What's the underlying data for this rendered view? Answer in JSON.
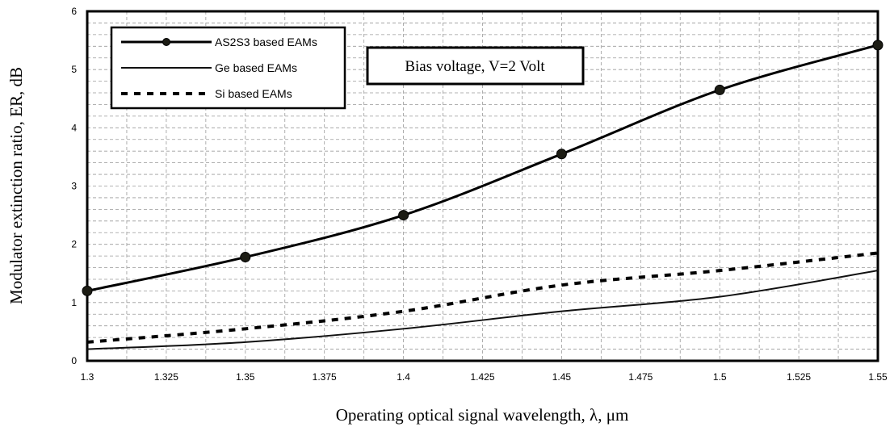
{
  "chart_data": {
    "type": "line",
    "xlabel": "Operating optical signal wavelength, λ, μm",
    "ylabel": "Modulator extinction ratio, ER, dB",
    "xlim": [
      1.3,
      1.55
    ],
    "ylim": [
      0,
      6
    ],
    "x_ticks": [
      "1.3",
      "1.325",
      "1.35",
      "1.375",
      "1.4",
      "1.425",
      "1.45",
      "1.475",
      "1.5",
      "1.525",
      "1.55"
    ],
    "y_ticks": [
      "0",
      "1",
      "2",
      "3",
      "4",
      "5",
      "6"
    ],
    "grid": "dashed major and minor",
    "legend_position": "top-left",
    "annotation": "Bias voltage, V=2 Volt",
    "series": [
      {
        "name": "AS2S3 based EAMs",
        "style": "solid-with-markers",
        "x": [
          1.3,
          1.35,
          1.4,
          1.45,
          1.5,
          1.55
        ],
        "y": [
          1.2,
          1.78,
          2.5,
          3.55,
          4.65,
          5.42
        ]
      },
      {
        "name": "Ge based EAMs",
        "style": "solid-thin",
        "x": [
          1.3,
          1.35,
          1.4,
          1.45,
          1.5,
          1.55
        ],
        "y": [
          0.2,
          0.32,
          0.55,
          0.85,
          1.1,
          1.55
        ]
      },
      {
        "name": "Si based EAMs",
        "style": "dashed",
        "x": [
          1.3,
          1.35,
          1.4,
          1.45,
          1.5,
          1.55
        ],
        "y": [
          0.32,
          0.55,
          0.85,
          1.3,
          1.55,
          1.85
        ]
      }
    ]
  }
}
